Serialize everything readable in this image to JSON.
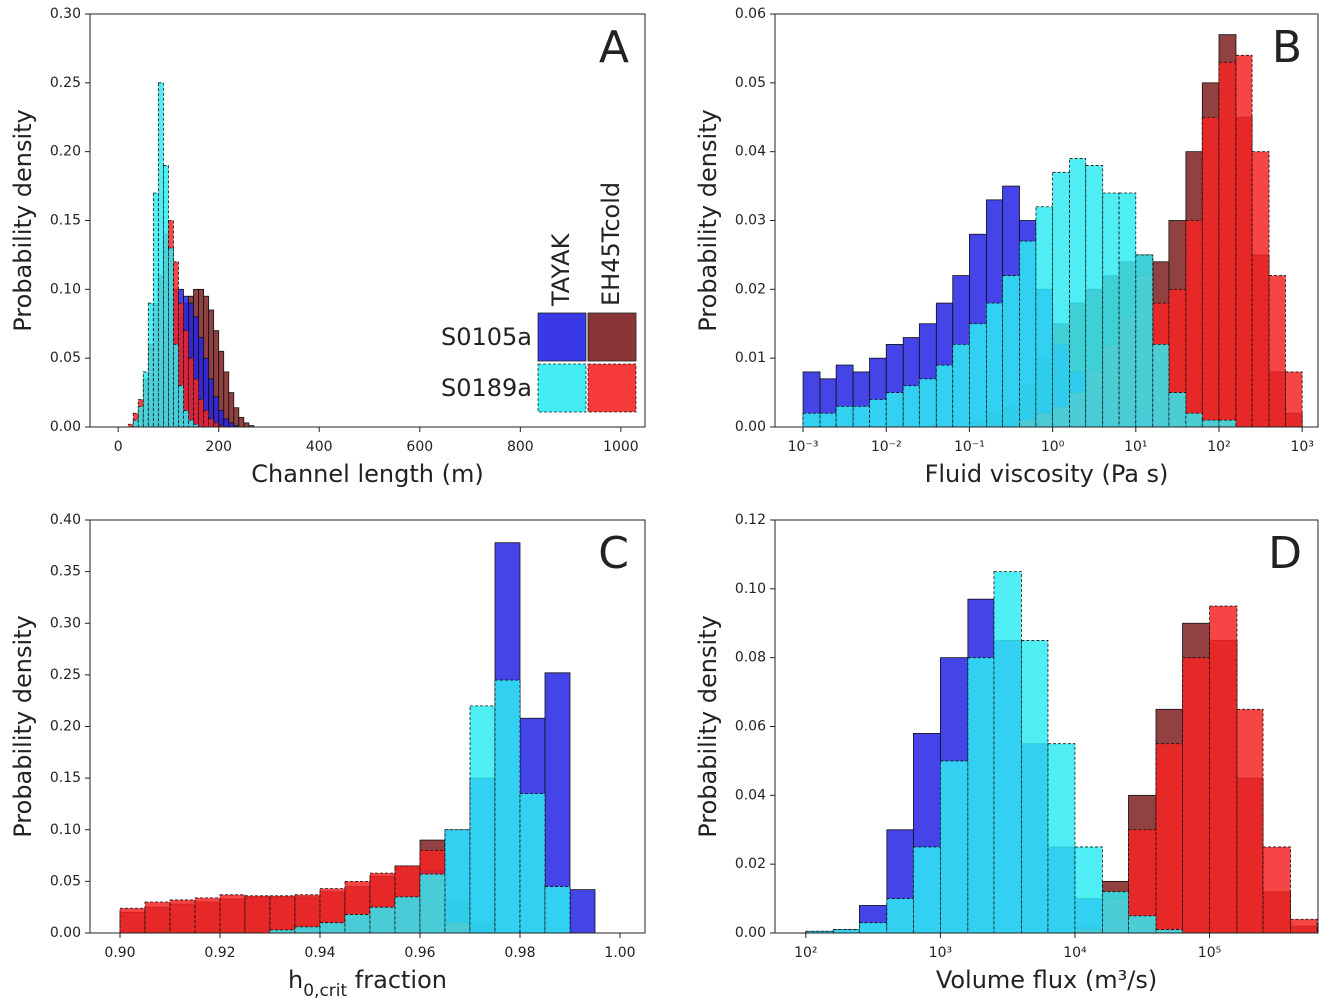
{
  "legend": {
    "rows": [
      "S0105a",
      "S0189a"
    ],
    "columns": [
      "TAYAK",
      "EH45Tcold"
    ],
    "colors": [
      [
        "#2323e4",
        "#7e2020"
      ],
      [
        "#30eaf2",
        "#f52424"
      ]
    ],
    "dashed": [
      false,
      true
    ]
  },
  "chart_data": [
    {
      "type": "histogram",
      "panel": "A",
      "ylabel": "Probability density",
      "xlabel": [
        "Channel length (m)"
      ],
      "xlim": [
        -56,
        1048
      ],
      "xticks": [
        0,
        200,
        400,
        600,
        800,
        1000
      ],
      "ylim": [
        0,
        0.3
      ],
      "yticks": [
        {
          "value": 0,
          "label": "0.00"
        },
        {
          "value": 0.05,
          "label": "0.05"
        },
        {
          "value": 0.1,
          "label": "0.10"
        },
        {
          "value": 0.15,
          "label": "0.15"
        },
        {
          "value": 0.2,
          "label": "0.20"
        },
        {
          "value": 0.25,
          "label": "0.25"
        },
        {
          "value": 0.3,
          "label": "0.30"
        }
      ],
      "bins": [
        20,
        30,
        40,
        50,
        60,
        70,
        80,
        90,
        100,
        110,
        120,
        130,
        140,
        150,
        160,
        170,
        180,
        190,
        200,
        210,
        220,
        230,
        240,
        250,
        260,
        270
      ],
      "series": [
        [
          [
            0,
            0,
            0,
            0.005,
            0.015,
            0.03,
            0.05,
            0.07,
            0.09,
            0.1,
            0.1,
            0.095,
            0.09,
            0.08,
            0.065,
            0.05,
            0.035,
            0.022,
            0.012,
            0.006,
            0.003,
            0.001,
            0,
            0,
            0
          ],
          [
            0,
            0,
            0,
            0,
            0.005,
            0.01,
            0.02,
            0.035,
            0.05,
            0.065,
            0.08,
            0.09,
            0.095,
            0.1,
            0.1,
            0.095,
            0.085,
            0.07,
            0.055,
            0.04,
            0.025,
            0.014,
            0.007,
            0.003,
            0.001
          ]
        ],
        [
          [
            0,
            0.005,
            0.015,
            0.04,
            0.09,
            0.17,
            0.25,
            0.19,
            0.13,
            0.06,
            0.03,
            0.012,
            0.005,
            0.002,
            0,
            0,
            0,
            0,
            0,
            0,
            0,
            0,
            0,
            0,
            0
          ],
          [
            0.002,
            0.01,
            0.02,
            0.035,
            0.06,
            0.09,
            0.11,
            0.14,
            0.15,
            0.12,
            0.09,
            0.07,
            0.05,
            0.035,
            0.02,
            0.012,
            0.006,
            0.003,
            0.001,
            0,
            0,
            0,
            0,
            0,
            0
          ]
        ]
      ]
    },
    {
      "type": "histogram",
      "panel": "B",
      "ylabel": "Probability density",
      "xlabel": [
        "Fluid viscosity (Pa s)"
      ],
      "xscale": "log",
      "xlim": [
        0.00046,
        1550
      ],
      "xticks": [
        {
          "value": 0.001,
          "label": "10⁻³"
        },
        {
          "value": 0.01,
          "label": "10⁻²"
        },
        {
          "value": 0.1,
          "label": "10⁻¹"
        },
        {
          "value": 1,
          "label": "10⁰"
        },
        {
          "value": 10,
          "label": "10¹"
        },
        {
          "value": 100,
          "label": "10²"
        },
        {
          "value": 1000,
          "label": "10³"
        }
      ],
      "ylim": [
        0,
        0.06
      ],
      "yticks": [
        {
          "value": 0,
          "label": "0.00"
        },
        {
          "value": 0.01,
          "label": "0.01"
        },
        {
          "value": 0.02,
          "label": "0.02"
        },
        {
          "value": 0.03,
          "label": "0.03"
        },
        {
          "value": 0.04,
          "label": "0.04"
        },
        {
          "value": 0.05,
          "label": "0.05"
        },
        {
          "value": 0.06,
          "label": "0.06"
        }
      ],
      "bins": [
        0.001,
        0.0016,
        0.0025,
        0.004,
        0.0063,
        0.01,
        0.016,
        0.025,
        0.04,
        0.063,
        0.1,
        0.16,
        0.25,
        0.4,
        0.63,
        1,
        1.6,
        2.5,
        4,
        6.3,
        10,
        16,
        25,
        40,
        63,
        100,
        160,
        250,
        400,
        630,
        1000
      ],
      "series": [
        [
          [
            0.008,
            0.007,
            0.009,
            0.008,
            0.01,
            0.012,
            0.013,
            0.015,
            0.018,
            0.022,
            0.028,
            0.033,
            0.035,
            0.03,
            0.02,
            0.012,
            0.008,
            0.005,
            0.004,
            0.003,
            0.002,
            0.001,
            0,
            0,
            0,
            0,
            0,
            0,
            0,
            0
          ],
          [
            0,
            0,
            0,
            0,
            0,
            0,
            0,
            0,
            0,
            0,
            0.001,
            0.002,
            0.003,
            0.006,
            0.01,
            0.015,
            0.018,
            0.02,
            0.022,
            0.024,
            0.025,
            0.024,
            0.03,
            0.04,
            0.05,
            0.057,
            0.045,
            0.025,
            0.008,
            0.002
          ]
        ],
        [
          [
            0.002,
            0.002,
            0.003,
            0.003,
            0.004,
            0.005,
            0.006,
            0.007,
            0.009,
            0.012,
            0.015,
            0.018,
            0.022,
            0.027,
            0.032,
            0.037,
            0.039,
            0.038,
            0.034,
            0.034,
            0.025,
            0.012,
            0.005,
            0.002,
            0.001,
            0.001,
            0,
            0,
            0,
            0
          ],
          [
            0,
            0,
            0,
            0,
            0,
            0,
            0,
            0,
            0,
            0,
            0,
            0,
            0,
            0.001,
            0.002,
            0.003,
            0.005,
            0.008,
            0.012,
            0.016,
            0.022,
            0.018,
            0.02,
            0.03,
            0.045,
            0.053,
            0.054,
            0.04,
            0.022,
            0.008
          ]
        ]
      ]
    },
    {
      "type": "histogram",
      "panel": "C",
      "ylabel": "Probability density",
      "xlabel": [
        "h",
        "0,crit",
        " fraction"
      ],
      "xlim": [
        0.894,
        1.005
      ],
      "xticks": [
        {
          "value": 0.9,
          "label": "0.90"
        },
        {
          "value": 0.92,
          "label": "0.92"
        },
        {
          "value": 0.94,
          "label": "0.94"
        },
        {
          "value": 0.96,
          "label": "0.96"
        },
        {
          "value": 0.98,
          "label": "0.98"
        },
        {
          "value": 1,
          "label": "1.00"
        }
      ],
      "ylim": [
        0,
        0.4
      ],
      "yticks": [
        {
          "value": 0,
          "label": "0.00"
        },
        {
          "value": 0.05,
          "label": "0.05"
        },
        {
          "value": 0.1,
          "label": "0.10"
        },
        {
          "value": 0.15,
          "label": "0.15"
        },
        {
          "value": 0.2,
          "label": "0.20"
        },
        {
          "value": 0.25,
          "label": "0.25"
        },
        {
          "value": 0.3,
          "label": "0.30"
        },
        {
          "value": 0.35,
          "label": "0.35"
        },
        {
          "value": 0.4,
          "label": "0.40"
        }
      ],
      "bins": [
        0.9,
        0.905,
        0.91,
        0.915,
        0.92,
        0.925,
        0.93,
        0.935,
        0.94,
        0.945,
        0.95,
        0.955,
        0.96,
        0.965,
        0.97,
        0.975,
        0.98,
        0.985,
        0.99,
        0.995
      ],
      "series": [
        [
          [
            0,
            0,
            0,
            0,
            0,
            0,
            0.002,
            0.005,
            0.01,
            0.015,
            0.02,
            0.035,
            0.06,
            0.1,
            0.15,
            0.378,
            0.208,
            0.252,
            0.042
          ],
          [
            0.02,
            0.025,
            0.028,
            0.03,
            0.033,
            0.035,
            0.035,
            0.035,
            0.04,
            0.045,
            0.055,
            0.065,
            0.09,
            0.03,
            0.01,
            0,
            0,
            0,
            0
          ]
        ],
        [
          [
            0,
            0,
            0,
            0,
            0,
            0,
            0.003,
            0.006,
            0.01,
            0.018,
            0.025,
            0.035,
            0.057,
            0.1,
            0.22,
            0.245,
            0.135,
            0.045,
            0
          ],
          [
            0.024,
            0.03,
            0.032,
            0.034,
            0.037,
            0.036,
            0.036,
            0.037,
            0.043,
            0.05,
            0.058,
            0.065,
            0.08,
            0.01,
            0,
            0,
            0,
            0,
            0
          ]
        ]
      ]
    },
    {
      "type": "histogram",
      "panel": "D",
      "ylabel": "Probability density",
      "xlabel": [
        "Volume flux (m³/s)"
      ],
      "xscale": "log",
      "xlim": [
        59,
        640000
      ],
      "xticks": [
        {
          "value": 100,
          "label": "10²"
        },
        {
          "value": 1000,
          "label": "10³"
        },
        {
          "value": 10000,
          "label": "10⁴"
        },
        {
          "value": 100000,
          "label": "10⁵"
        }
      ],
      "ylim": [
        0,
        0.12
      ],
      "yticks": [
        {
          "value": 0,
          "label": "0.00"
        },
        {
          "value": 0.02,
          "label": "0.02"
        },
        {
          "value": 0.04,
          "label": "0.04"
        },
        {
          "value": 0.06,
          "label": "0.06"
        },
        {
          "value": 0.08,
          "label": "0.08"
        },
        {
          "value": 0.1,
          "label": "0.10"
        },
        {
          "value": 0.12,
          "label": "0.12"
        }
      ],
      "bins": [
        63,
        100,
        160,
        250,
        400,
        630,
        1000,
        1600,
        2500,
        4000,
        6300,
        10000,
        16000,
        25000,
        40000,
        63000,
        100000,
        160000,
        250000,
        400000,
        630000
      ],
      "series": [
        [
          [
            0,
            0.0005,
            0.001,
            0.008,
            0.03,
            0.058,
            0.08,
            0.097,
            0.085,
            0.055,
            0.025,
            0.01,
            0.004,
            0.001,
            0,
            0,
            0,
            0,
            0,
            0
          ],
          [
            0,
            0,
            0,
            0,
            0,
            0,
            0,
            0,
            0,
            0,
            0,
            0.002,
            0.015,
            0.04,
            0.065,
            0.09,
            0.085,
            0.045,
            0.012,
            0.002
          ]
        ],
        [
          [
            0,
            0.0005,
            0.001,
            0.003,
            0.01,
            0.025,
            0.05,
            0.08,
            0.105,
            0.085,
            0.055,
            0.025,
            0.012,
            0.005,
            0.001,
            0,
            0,
            0,
            0,
            0
          ],
          [
            0,
            0,
            0,
            0,
            0,
            0,
            0,
            0,
            0,
            0,
            0,
            0.001,
            0.01,
            0.03,
            0.055,
            0.08,
            0.095,
            0.065,
            0.025,
            0.004
          ]
        ]
      ]
    }
  ]
}
